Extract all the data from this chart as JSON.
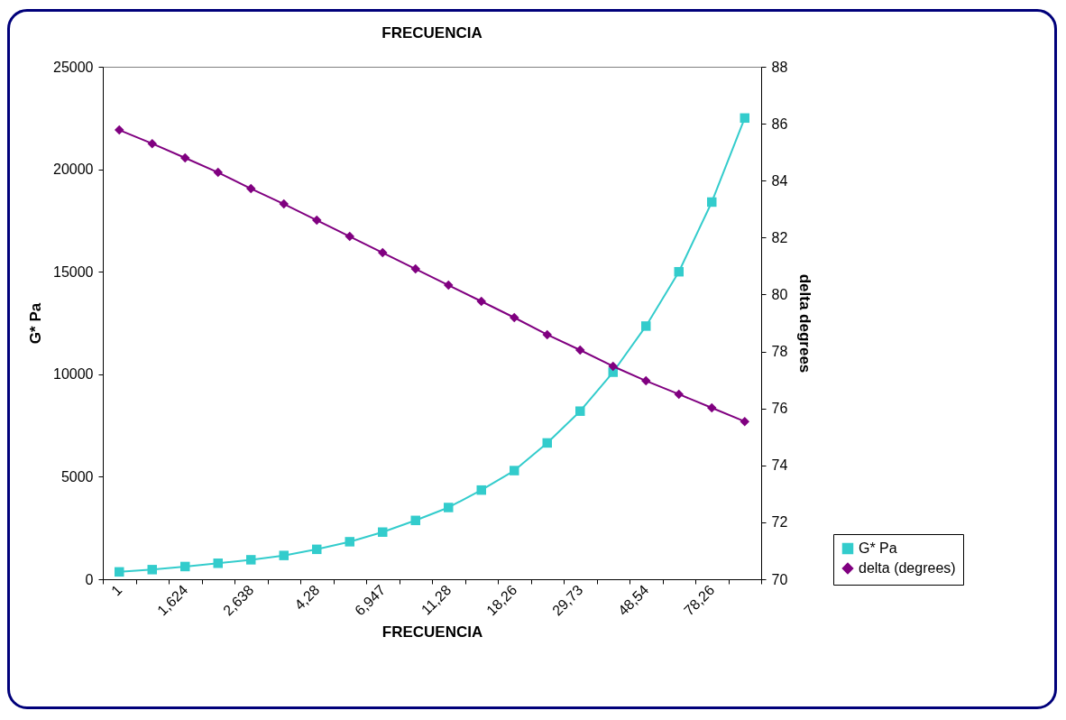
{
  "chart_data": {
    "type": "line",
    "title": "FRECUENCIA",
    "xlabel": "FRECUENCIA",
    "ylabel": "G* Pa",
    "y2label": "delta degrees",
    "categories": [
      "1",
      null,
      "1,624",
      null,
      "2,638",
      null,
      "4,28",
      null,
      "6,947",
      null,
      "11,28",
      null,
      "18,26",
      null,
      "29,73",
      null,
      "48,54",
      null,
      "78,26",
      null
    ],
    "series": [
      {
        "name": "G* Pa",
        "color": "#33cccc",
        "marker": "square",
        "values": [
          360,
          470,
          620,
          780,
          950,
          1160,
          1460,
          1830,
          2300,
          2870,
          3500,
          4350,
          5300,
          6650,
          8200,
          10100,
          12350,
          15000,
          18400,
          22500
        ]
      },
      {
        "name": "delta (degrees)",
        "color": "#800080",
        "marker": "diamond",
        "axis": "y2",
        "values": [
          85.78,
          85.3,
          84.8,
          84.29,
          83.72,
          83.18,
          82.61,
          82.04,
          81.47,
          80.9,
          80.33,
          79.76,
          79.19,
          78.59,
          78.05,
          77.48,
          76.97,
          76.5,
          76.02,
          75.54
        ]
      }
    ],
    "ylim": [
      0,
      25000
    ],
    "yticks": [
      0,
      5000,
      10000,
      15000,
      20000,
      25000
    ],
    "y2lim": [
      70,
      88
    ],
    "y2ticks": [
      70,
      72,
      74,
      76,
      78,
      80,
      82,
      84,
      86,
      88
    ],
    "grid": false,
    "legend": "right"
  }
}
